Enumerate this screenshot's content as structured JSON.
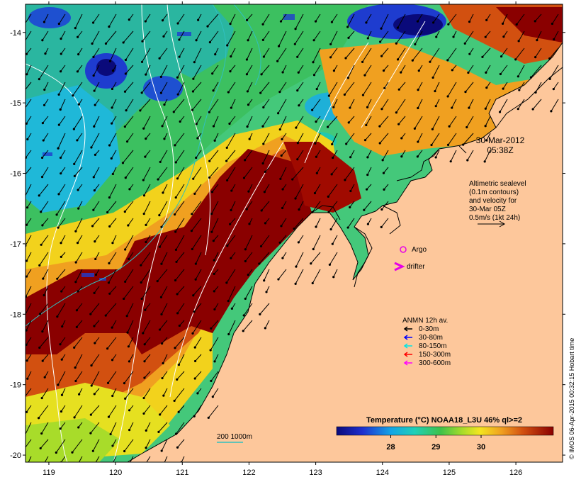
{
  "map": {
    "lat_ticks": [
      "-14",
      "-15",
      "-16",
      "-17",
      "-18",
      "-19",
      "-20"
    ],
    "lon_ticks": [
      "119",
      "120",
      "121",
      "122",
      "123",
      "124",
      "125",
      "126"
    ],
    "lat_range": [
      -20.1,
      -13.6
    ],
    "lon_range": [
      118.65,
      126.7
    ]
  },
  "timestamp": {
    "date": "30-Mar-2012",
    "time": "05:38Z"
  },
  "altimetry_note": {
    "line1": "Altimetric sealevel",
    "line2": "(0.1m contours)",
    "line3": "and velocity for",
    "line4": "30-Mar 05Z",
    "line5": "0.5m/s (1kt 24h)"
  },
  "markers": {
    "argo": "Argo",
    "drifter": "drifter"
  },
  "anmn_legend": {
    "title": "ANMN 12h av.",
    "items": [
      {
        "label": "0-30m",
        "color": "#000000"
      },
      {
        "label": "30-80m",
        "color": "#0000ff"
      },
      {
        "label": "80-150m",
        "color": "#00e5e5"
      },
      {
        "label": "150-300m",
        "color": "#ff0000"
      },
      {
        "label": "300-600m",
        "color": "#ff00ff"
      }
    ]
  },
  "isobath_label": "200  1000m",
  "colorbar": {
    "title": "Temperature (°C) NOAA18_L3U 46% ql>=2",
    "ticks": [
      "28",
      "29",
      "30"
    ],
    "range": [
      26.8,
      31.6
    ]
  },
  "credit": "© IMOS 06-Apr-2015 00:32:15 Hobart time",
  "colors": {
    "land": "#fdc79b",
    "argo": "#e600e6",
    "drifter": "#e600e6",
    "isobath": "#30c0c0",
    "contour": "#ffffff"
  }
}
